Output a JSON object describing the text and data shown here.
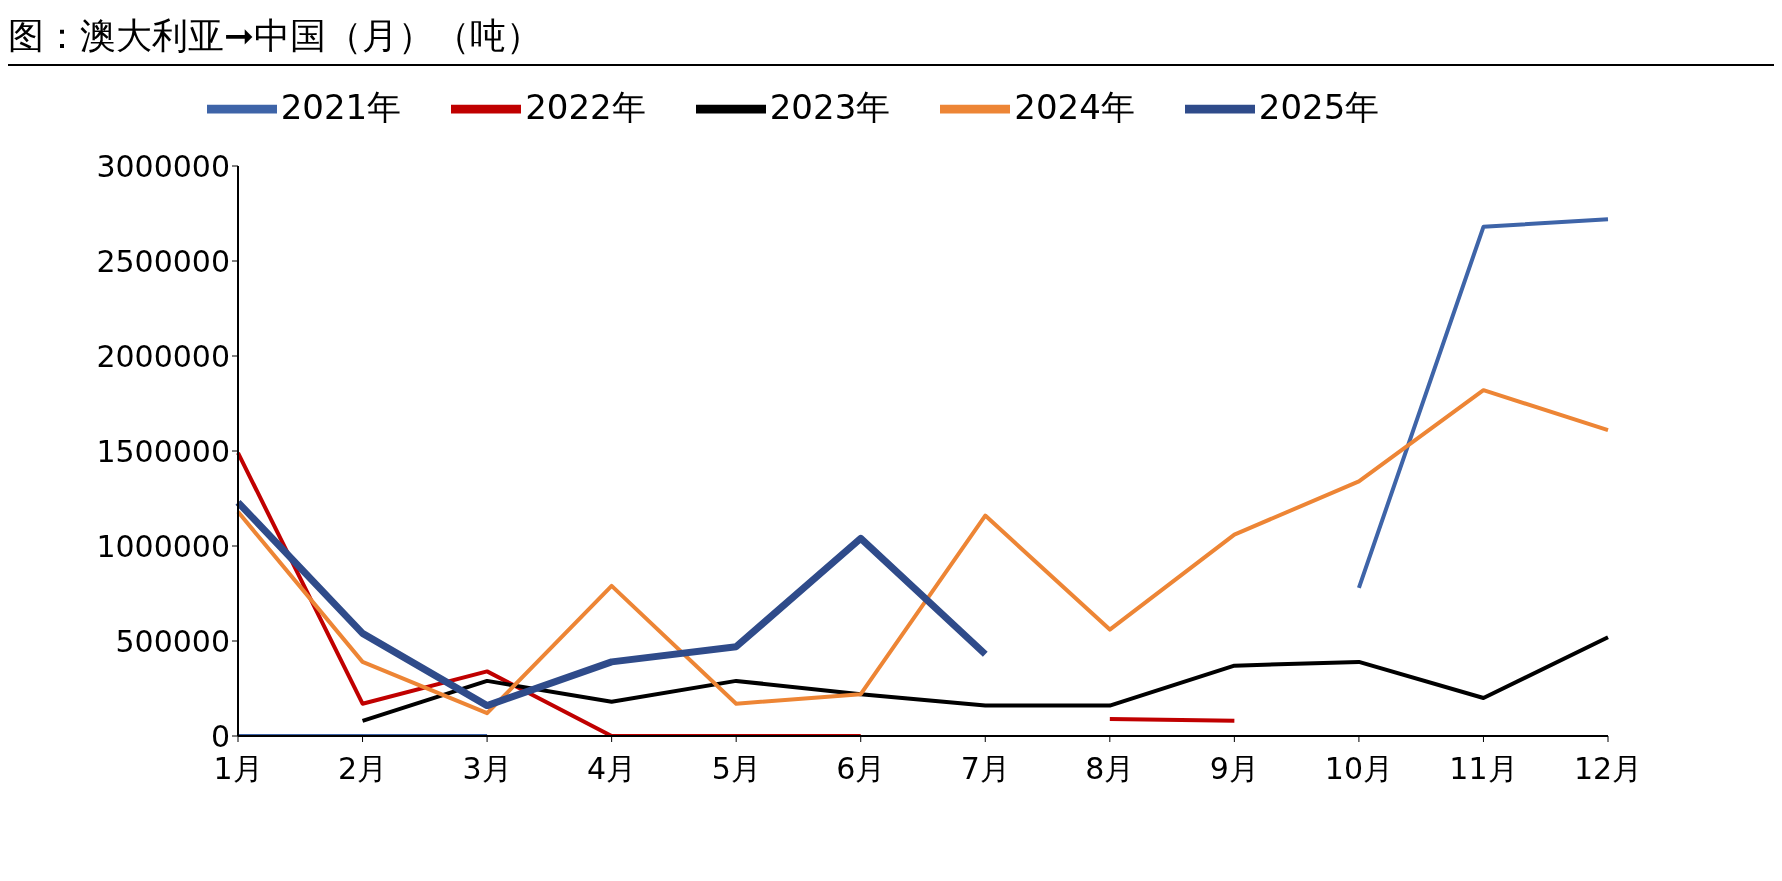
{
  "chart_data": {
    "type": "line",
    "title": "图：澳大利亚➞中国（月）（吨）",
    "categories": [
      "1月",
      "2月",
      "3月",
      "4月",
      "5月",
      "6月",
      "7月",
      "8月",
      "9月",
      "10月",
      "11月",
      "12月"
    ],
    "series": [
      {
        "name": "2021年",
        "color": "#3e64a8",
        "values": [
          0,
          0,
          0,
          null,
          null,
          null,
          null,
          null,
          null,
          780000,
          2680000,
          2720000
        ]
      },
      {
        "name": "2022年",
        "color": "#c00000",
        "values": [
          1490000,
          170000,
          340000,
          0,
          0,
          0,
          null,
          90000,
          80000,
          null,
          null,
          null
        ]
      },
      {
        "name": "2023年",
        "color": "#000000",
        "values": [
          null,
          80000,
          290000,
          180000,
          290000,
          220000,
          160000,
          160000,
          370000,
          390000,
          200000,
          520000
        ]
      },
      {
        "name": "2024年",
        "color": "#ed8535",
        "values": [
          1180000,
          390000,
          120000,
          790000,
          170000,
          220000,
          1160000,
          560000,
          1060000,
          1340000,
          1820000,
          1610000
        ]
      },
      {
        "name": "2025年",
        "color": "#2f4b8a",
        "values": [
          1230000,
          540000,
          160000,
          390000,
          470000,
          1040000,
          430000,
          null,
          null,
          null,
          null,
          null
        ]
      }
    ],
    "ylim": [
      0,
      3000000
    ],
    "yticks": [
      0,
      500000,
      1000000,
      1500000,
      2000000,
      2500000,
      3000000
    ],
    "grid": false,
    "legend": "top",
    "marker": "none",
    "line_style": "solid"
  }
}
